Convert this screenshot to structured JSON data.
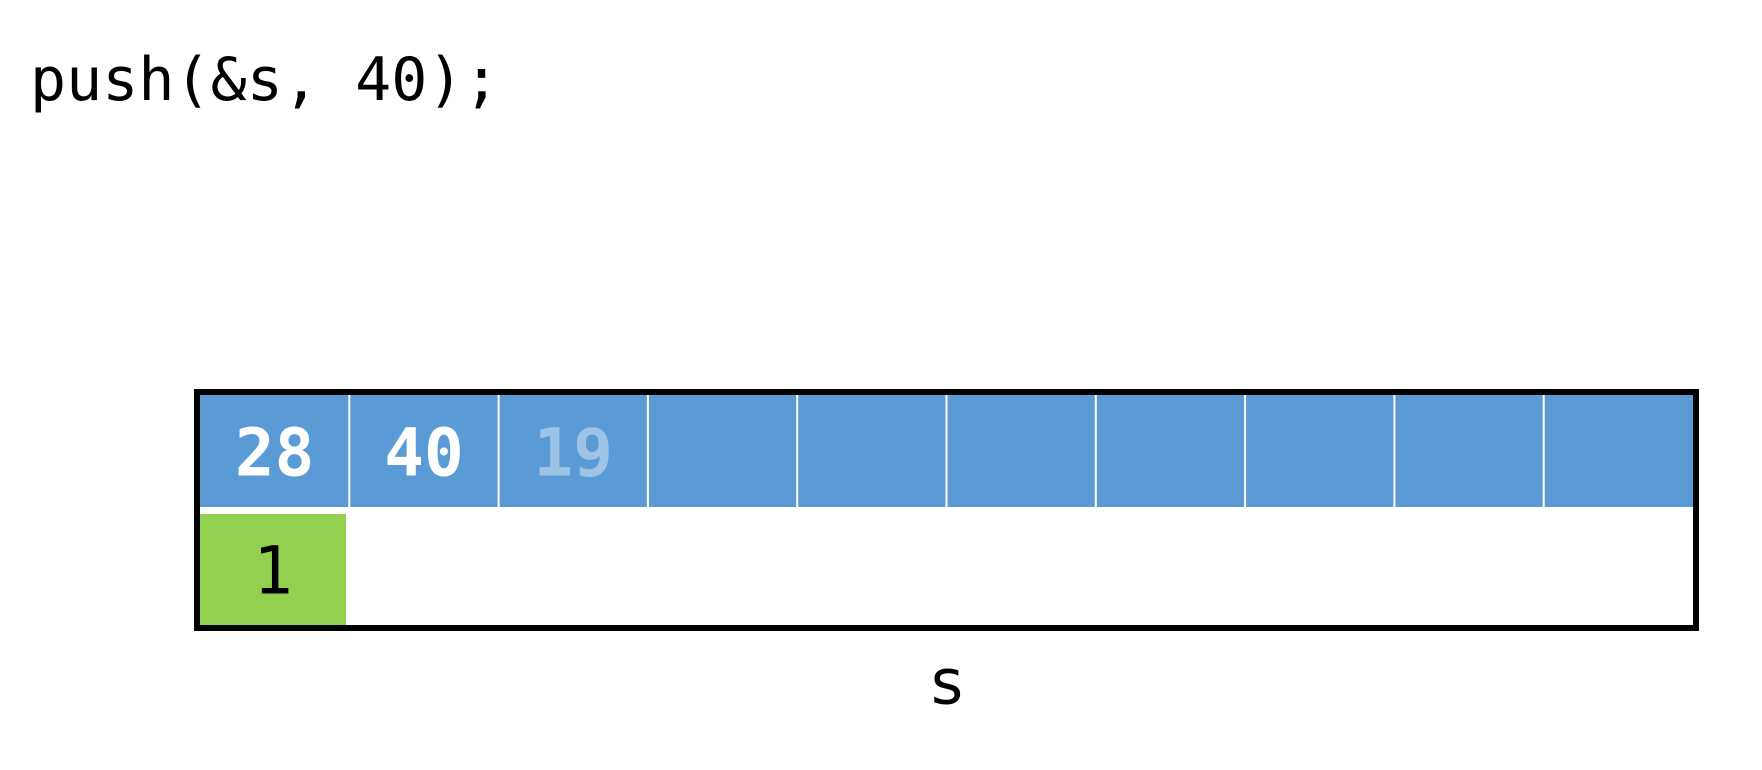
{
  "code": "push(&s, 40);",
  "stack": {
    "data": [
      28,
      40,
      19
    ],
    "top": 1,
    "capacity": 10,
    "label": "s"
  }
}
